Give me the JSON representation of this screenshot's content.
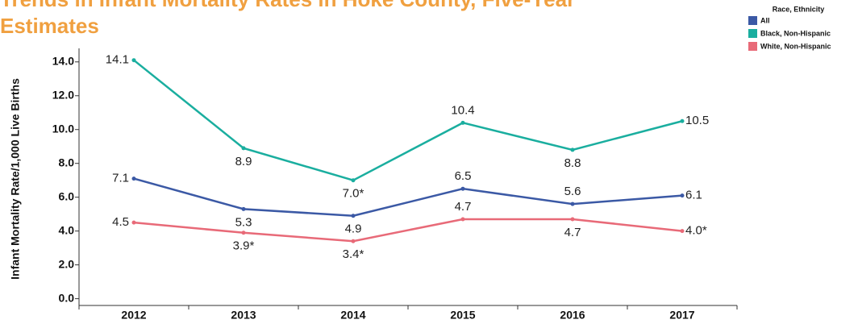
{
  "chart_data": {
    "type": "line",
    "title_lines": [
      "Trends in Infant Mortality Rates in Hoke County, Five-Year",
      "Estimates"
    ],
    "y_label": "Infant Mortality Rate/1,000 Live Births",
    "legend_title": "Race, Ethnicity",
    "categories": [
      "2012",
      "2013",
      "2014",
      "2015",
      "2016",
      "2017"
    ],
    "series": [
      {
        "name": "All",
        "color": "#3b59a5",
        "values": [
          7.1,
          5.3,
          4.9,
          6.5,
          5.6,
          6.1
        ],
        "value_labels": [
          "7.1",
          "5.3",
          "4.9",
          "6.5",
          "5.6",
          "6.1"
        ]
      },
      {
        "name": "Black, Non-Hispanic",
        "color": "#1aae9f",
        "values": [
          14.1,
          8.9,
          7.0,
          10.4,
          8.8,
          10.5
        ],
        "value_labels": [
          "14.1",
          "8.9",
          "7.0*",
          "10.4",
          "8.8",
          "10.5"
        ]
      },
      {
        "name": "White, Non-Hispanic",
        "color": "#e86a78",
        "values": [
          4.5,
          3.9,
          3.4,
          4.7,
          4.7,
          4.0
        ],
        "value_labels": [
          "4.5",
          "3.9*",
          "3.4*",
          "4.7",
          "4.7",
          "4.0*"
        ]
      }
    ],
    "ylim": [
      -0.4,
      14.8
    ],
    "yticks": [
      {
        "value": 0,
        "label": "0.0"
      },
      {
        "value": 2,
        "label": "2.0"
      },
      {
        "value": 4,
        "label": "4.0"
      },
      {
        "value": 6,
        "label": "6.0"
      },
      {
        "value": 8,
        "label": "8.0"
      },
      {
        "value": 10,
        "label": "10.0"
      },
      {
        "value": 12,
        "label": "12.0"
      },
      {
        "value": 14,
        "label": "14.0"
      }
    ],
    "legend": "top-right"
  }
}
